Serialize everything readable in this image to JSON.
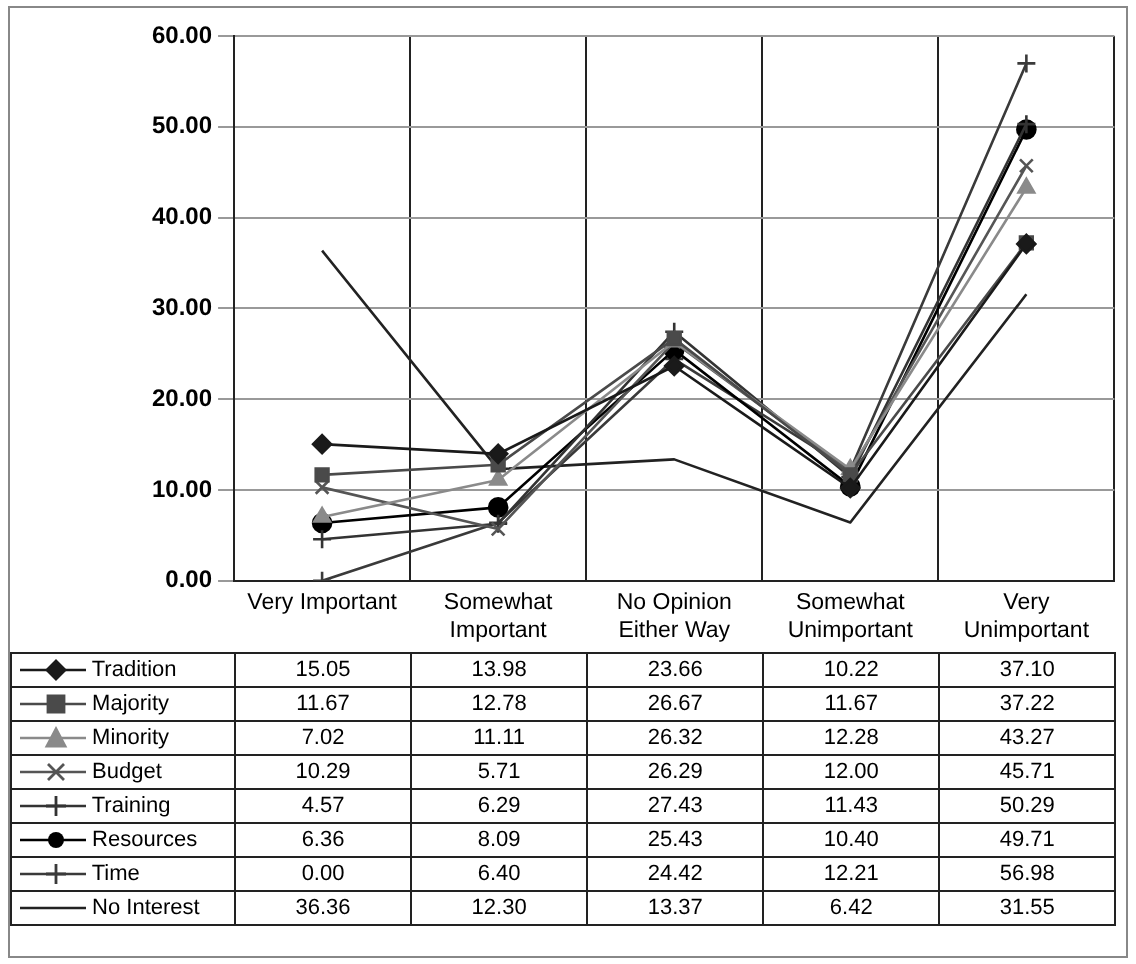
{
  "chart_data": {
    "type": "line",
    "categories": [
      "Very Important",
      "Somewhat Important",
      "No Opinion Either Way",
      "Somewhat Unimportant",
      "Very Unimportant"
    ],
    "ylim": [
      0,
      60
    ],
    "yticks": [
      {
        "value": 0,
        "label": "0.00"
      },
      {
        "value": 10,
        "label": "10.00"
      },
      {
        "value": 20,
        "label": "20.00"
      },
      {
        "value": 30,
        "label": "30.00"
      },
      {
        "value": 40,
        "label": "40.00"
      },
      {
        "value": 50,
        "label": "50.00"
      },
      {
        "value": 60,
        "label": "60.00"
      }
    ],
    "grid": true,
    "legend": "bottom",
    "series": [
      {
        "name": "Tradition",
        "color": "#1a1a1a",
        "marker": "diamond",
        "values": [
          15.05,
          13.98,
          23.66,
          10.22,
          37.1
        ],
        "value_labels": [
          "15.05",
          "13.98",
          "23.66",
          "10.22",
          "37.10"
        ]
      },
      {
        "name": "Majority",
        "color": "#4a4a4a",
        "marker": "square",
        "values": [
          11.67,
          12.78,
          26.67,
          11.67,
          37.22
        ],
        "value_labels": [
          "11.67",
          "12.78",
          "26.67",
          "11.67",
          "37.22"
        ]
      },
      {
        "name": "Minority",
        "color": "#8a8a8a",
        "marker": "triangle",
        "values": [
          7.02,
          11.11,
          26.32,
          12.28,
          43.27
        ],
        "value_labels": [
          "7.02",
          "11.11",
          "26.32",
          "12.28",
          "43.27"
        ]
      },
      {
        "name": "Budget",
        "color": "#555555",
        "marker": "x",
        "values": [
          10.29,
          5.71,
          26.29,
          12.0,
          45.71
        ],
        "value_labels": [
          "10.29",
          "5.71",
          "26.29",
          "12.00",
          "45.71"
        ]
      },
      {
        "name": "Training",
        "color": "#333333",
        "marker": "cross",
        "values": [
          4.57,
          6.29,
          27.43,
          11.43,
          50.29
        ],
        "value_labels": [
          "4.57",
          "6.29",
          "27.43",
          "11.43",
          "50.29"
        ]
      },
      {
        "name": "Resources",
        "color": "#000000",
        "marker": "circle",
        "values": [
          6.36,
          8.09,
          25.43,
          10.4,
          49.71
        ],
        "value_labels": [
          "6.36",
          "8.09",
          "25.43",
          "10.40",
          "49.71"
        ]
      },
      {
        "name": "Time",
        "color": "#3a3a3a",
        "marker": "cross",
        "values": [
          0.0,
          6.4,
          24.42,
          12.21,
          56.98
        ],
        "value_labels": [
          "0.00",
          "6.40",
          "24.42",
          "12.21",
          "56.98"
        ]
      },
      {
        "name": "No Interest",
        "color": "#222222",
        "marker": "none",
        "values": [
          36.36,
          12.3,
          13.37,
          6.42,
          31.55
        ],
        "value_labels": [
          "36.36",
          "12.30",
          "13.37",
          "6.42",
          "31.55"
        ]
      }
    ]
  }
}
